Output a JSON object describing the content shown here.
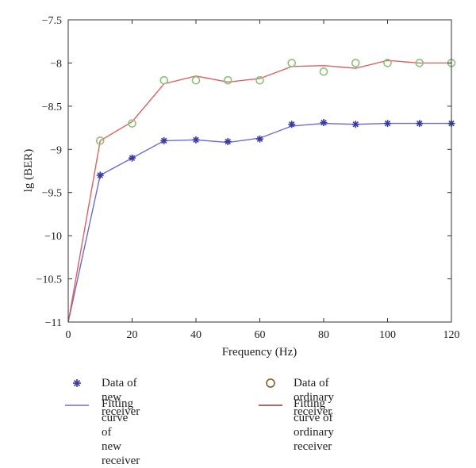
{
  "chart_data": {
    "type": "line",
    "xlabel": "Frequency (Hz)",
    "ylabel": "lg (BER)",
    "xlim": [
      0,
      120
    ],
    "ylim": [
      -11,
      -7.5
    ],
    "xticks": [
      0,
      20,
      40,
      60,
      80,
      100,
      120
    ],
    "yticks": [
      -11,
      -10.5,
      -10,
      -9.5,
      -9,
      -8.5,
      -8,
      -7.5
    ],
    "xtick_labels": [
      "0",
      "20",
      "40",
      "60",
      "80",
      "100",
      "120"
    ],
    "ytick_labels": [
      "−11",
      "−10.5",
      "−10",
      "−9.5",
      "−9",
      "−8.5",
      "−8",
      "−7.5"
    ],
    "grid": false,
    "series": [
      {
        "name": "Data of new receiver",
        "kind": "scatter",
        "marker": "asterisk",
        "color": "#3a3aa0",
        "x": [
          10,
          20,
          30,
          40,
          50,
          60,
          70,
          80,
          90,
          100,
          110,
          120
        ],
        "y": [
          -9.3,
          -9.1,
          -8.9,
          -8.89,
          -8.91,
          -8.88,
          -8.71,
          -8.69,
          -8.71,
          -8.7,
          -8.7,
          -8.7
        ]
      },
      {
        "name": "Data of ordinary receiver",
        "kind": "scatter",
        "marker": "circle",
        "color": "#8cc07a",
        "x": [
          10,
          20,
          30,
          40,
          50,
          60,
          70,
          80,
          90,
          100,
          110,
          120
        ],
        "y": [
          -8.9,
          -8.7,
          -8.2,
          -8.2,
          -8.2,
          -8.2,
          -8.0,
          -8.1,
          -8.0,
          -8.0,
          -8.0,
          -8.0
        ]
      },
      {
        "name": "Fitting curve of\nnew receiver",
        "kind": "line",
        "color": "#6b6bd0",
        "x": [
          0,
          10,
          20,
          30,
          40,
          50,
          60,
          70,
          80,
          90,
          100,
          110,
          120
        ],
        "y": [
          -11,
          -9.3,
          -9.1,
          -8.9,
          -8.89,
          -8.92,
          -8.87,
          -8.73,
          -8.7,
          -8.71,
          -8.7,
          -8.7,
          -8.7
        ]
      },
      {
        "name": "Fitting curve of\nordinary receiver",
        "kind": "line",
        "color": "#e06060",
        "x": [
          0,
          10,
          20,
          30,
          40,
          50,
          60,
          70,
          80,
          90,
          100,
          110,
          120
        ],
        "y": [
          -11,
          -8.9,
          -8.68,
          -8.24,
          -8.15,
          -8.22,
          -8.18,
          -8.04,
          -8.03,
          -8.06,
          -7.97,
          -8.0,
          -8.0
        ]
      }
    ],
    "legend": {
      "placement": "bottom",
      "entries": [
        {
          "label": "Data of new receiver",
          "marker": "asterisk",
          "color": "#3a3aa0"
        },
        {
          "label": "Data of ordinary receiver",
          "marker": "circle",
          "color": "#7a5a1a"
        },
        {
          "label": "Fitting curve of\nnew receiver",
          "marker": "line",
          "color": "#6b6bd0"
        },
        {
          "label": "Fitting curve of\nordinary receiver",
          "marker": "line",
          "color": "#8a3a2a"
        }
      ]
    }
  }
}
